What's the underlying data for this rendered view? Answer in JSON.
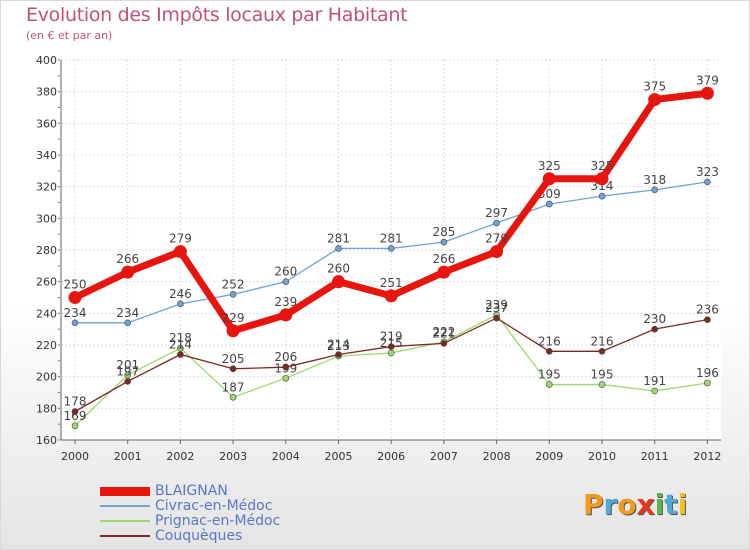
{
  "title": "Evolution des Impôts locaux par Habitant",
  "subtitle": "(en € et par an)",
  "logo": {
    "letters": [
      "P",
      "r",
      "o",
      "x",
      "i",
      "t",
      "i"
    ],
    "colors": [
      "#f29a1e",
      "#4fa8d8",
      "#f29a1e",
      "#e8371f",
      "#5cb846",
      "#4fa8d8",
      "#f2c21e"
    ]
  },
  "chart_data": {
    "type": "line",
    "title": "Evolution des Impôts locaux par Habitant",
    "subtitle": "(en € et par an)",
    "xlabel": "",
    "ylabel": "",
    "ylim": [
      160,
      400
    ],
    "yticks": [
      160,
      180,
      200,
      220,
      240,
      260,
      280,
      300,
      320,
      340,
      360,
      380,
      400
    ],
    "x": [
      "2000",
      "2001",
      "2002",
      "2003",
      "2004",
      "2005",
      "2006",
      "2007",
      "2008",
      "2009",
      "2010",
      "2011",
      "2012"
    ],
    "legend_position": "bottom-left",
    "series": [
      {
        "name": "BLAIGNAN",
        "color": "#e8140e",
        "emphasis": true,
        "values": [
          250,
          266,
          279,
          229,
          239,
          260,
          251,
          266,
          279,
          325,
          325,
          375,
          379
        ]
      },
      {
        "name": "Civrac-en-Médoc",
        "color": "#6fa3d6",
        "values": [
          234,
          234,
          246,
          252,
          260,
          281,
          281,
          285,
          297,
          309,
          314,
          318,
          323
        ]
      },
      {
        "name": "Prignac-en-Médoc",
        "color": "#9ed870",
        "values": [
          169,
          201,
          218,
          187,
          199,
          213,
          215,
          222,
          239,
          195,
          195,
          191,
          196
        ]
      },
      {
        "name": "Couquèques",
        "color": "#7a2a22",
        "values": [
          178,
          197,
          214,
          205,
          206,
          214,
          219,
          221,
          237,
          216,
          216,
          230,
          236
        ]
      }
    ]
  }
}
